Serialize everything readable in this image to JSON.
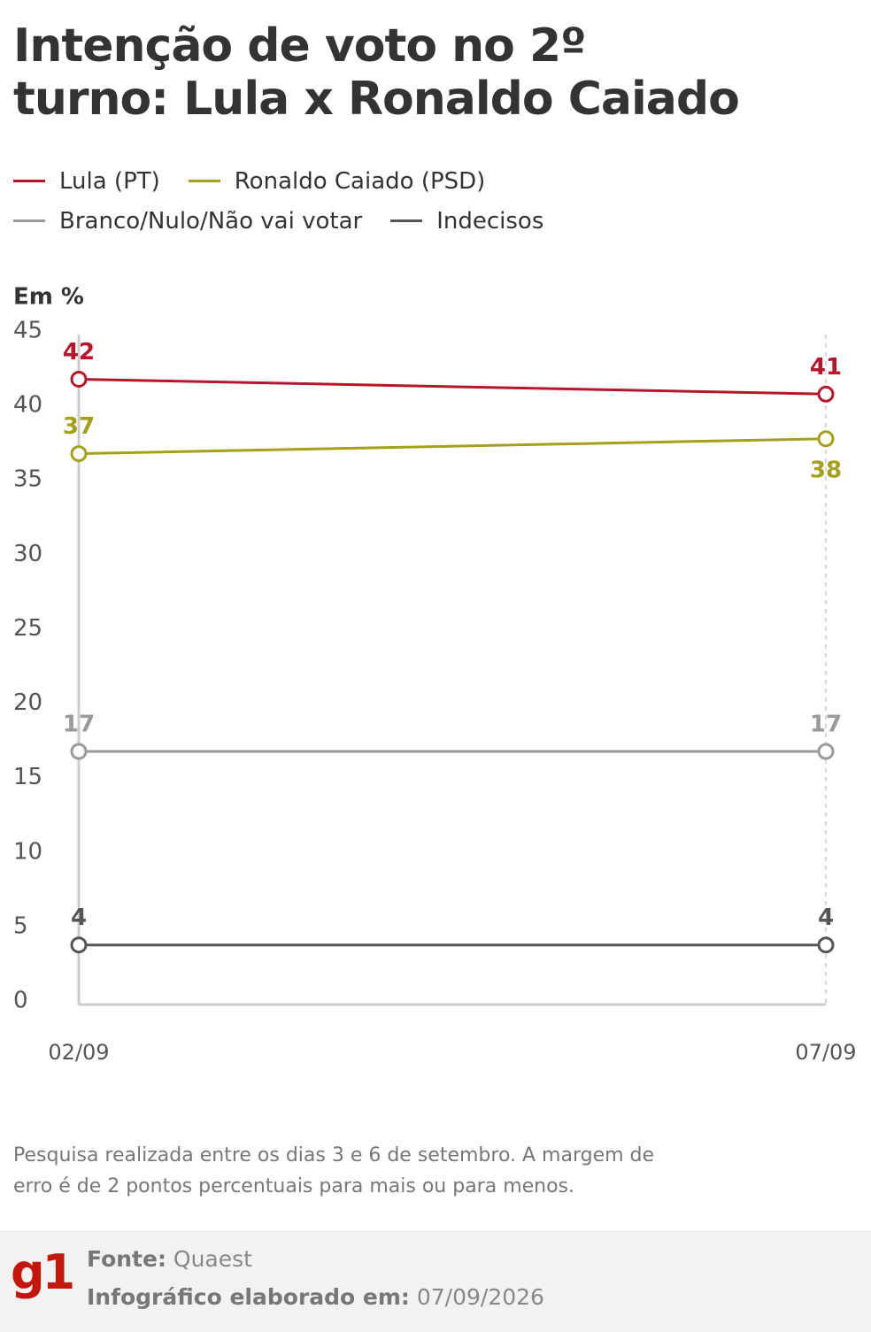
{
  "title": [
    "Intenção de voto no 2º",
    "turno: Lula x Ronaldo Caiado"
  ],
  "chart_data": {
    "type": "line",
    "y_label": "Em %",
    "categories": [
      "02/09",
      "07/09"
    ],
    "series": [
      {
        "name": "Lula (PT)",
        "color": "#b5162b",
        "values": [
          42,
          41
        ]
      },
      {
        "name": "Ronaldo Caiado (PSD)",
        "color": "#a5a01c",
        "values": [
          37,
          38
        ]
      },
      {
        "name": "Branco/Nulo/Não vai votar",
        "color": "#9a9a9a",
        "values": [
          17,
          17
        ]
      },
      {
        "name": "Indecisos",
        "color": "#555555",
        "values": [
          4,
          4
        ]
      }
    ],
    "ylim": [
      0,
      45
    ],
    "yticks": [
      0,
      5,
      10,
      15,
      20,
      25,
      30,
      35,
      40,
      45
    ]
  },
  "note": "Pesquisa realizada entre os dias 3 e 6 de setembro. A margem de erro é de 2 pontos percentuais para mais ou para menos.",
  "footer": {
    "logo": "g1",
    "source_label": "Fonte:",
    "source": "Quaest",
    "date_label": "Infográfico elaborado em:",
    "date": "07/09/2026"
  }
}
